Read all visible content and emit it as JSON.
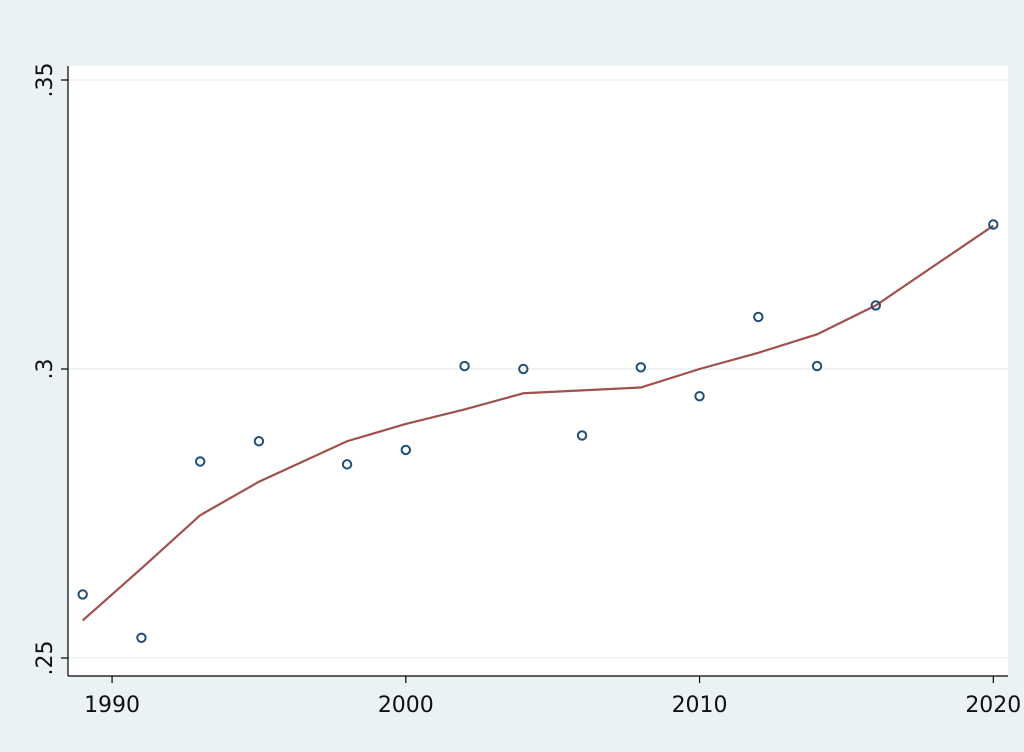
{
  "chart_data": {
    "type": "scatter",
    "title": "",
    "xlabel": "",
    "ylabel": "",
    "xlim": [
      1988.5,
      2020.5
    ],
    "ylim": [
      0.25,
      0.35
    ],
    "x_ticks": [
      1990,
      2000,
      2010,
      2020
    ],
    "x_tick_labels": [
      "1990",
      "2000",
      "2010",
      "2020"
    ],
    "y_ticks": [
      0.25,
      0.3,
      0.35
    ],
    "y_tick_labels": [
      ".25",
      ".3",
      ".35"
    ],
    "grid": "horizontal",
    "legend": "none",
    "colors": {
      "background": "#eaf2f3",
      "plot_area": "#ffffff",
      "points": "#1f4e79",
      "line": "#a0504d"
    },
    "series": [
      {
        "kind": "scatter",
        "x": [
          1989,
          1991,
          1993,
          1995,
          1998,
          2000,
          2002,
          2004,
          2006,
          2008,
          2010,
          2012,
          2014,
          2016,
          2020
        ],
        "y": [
          0.261,
          0.2535,
          0.284,
          0.2875,
          0.2835,
          0.286,
          0.3005,
          0.3,
          0.2885,
          0.3003,
          0.2953,
          0.309,
          0.3005,
          0.311,
          0.325
        ]
      },
      {
        "kind": "line",
        "x": [
          1989,
          1991,
          1993,
          1995,
          1998,
          2000,
          2002,
          2004,
          2006,
          2008,
          2010,
          2012,
          2014,
          2016,
          2020
        ],
        "y": [
          0.2565,
          0.2655,
          0.2747,
          0.2805,
          0.2875,
          0.2905,
          0.293,
          0.2958,
          0.2963,
          0.2968,
          0.3,
          0.3028,
          0.306,
          0.311,
          0.3248
        ]
      }
    ]
  }
}
